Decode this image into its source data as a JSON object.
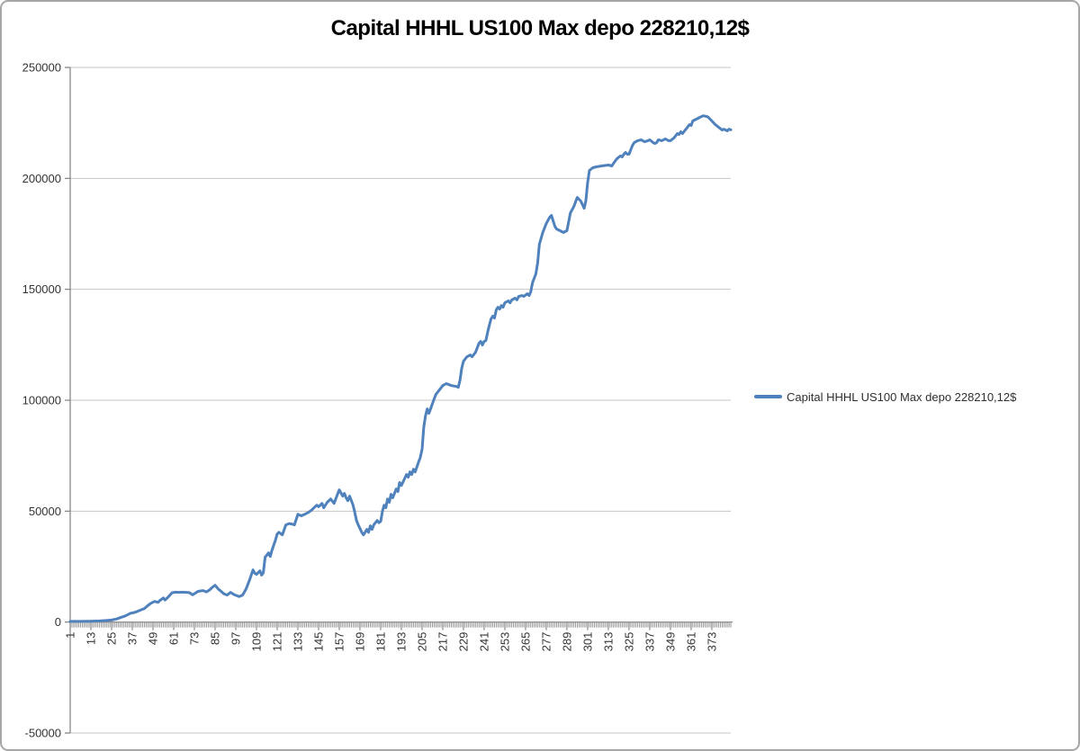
{
  "chart_title": "Capital HHHL US100 Max depo 228210,12$",
  "legend": {
    "label": "Capital HHHL US100 Max depo 228210,12$",
    "position": "right"
  },
  "colors": {
    "series_line": "#4f81bd",
    "gridline": "#c6c6c6",
    "axis_line": "#808080",
    "tick": "#8c8c8c",
    "label_text": "#333333",
    "title_text": "#000000",
    "frame_border": "#a6a6a6",
    "background": "#ffffff"
  },
  "chart_data": {
    "type": "line",
    "title": "Capital HHHL US100 Max depo 228210,12$",
    "xlabel": "",
    "ylabel": "",
    "x_range": [
      1,
      384
    ],
    "ylim": [
      -50000,
      250000
    ],
    "y_ticks": [
      250000,
      200000,
      150000,
      100000,
      50000,
      0,
      -50000
    ],
    "x_tick_labels": [
      1,
      13,
      25,
      37,
      49,
      61,
      73,
      85,
      97,
      109,
      121,
      133,
      145,
      157,
      169,
      181,
      193,
      205,
      217,
      229,
      241,
      253,
      265,
      277,
      289,
      301,
      313,
      325,
      337,
      349,
      361,
      373
    ],
    "grid": "horizontal",
    "legend_position": "right",
    "series": [
      {
        "name": "Capital HHHL US100 Max depo 228210,12$",
        "color": "#4f81bd",
        "points": [
          [
            1,
            300
          ],
          [
            6,
            300
          ],
          [
            12,
            400
          ],
          [
            18,
            500
          ],
          [
            22,
            700
          ],
          [
            25,
            900
          ],
          [
            28,
            1400
          ],
          [
            30,
            2000
          ],
          [
            33,
            2800
          ],
          [
            36,
            4000
          ],
          [
            38,
            4300
          ],
          [
            40,
            4800
          ],
          [
            42,
            5500
          ],
          [
            44,
            6100
          ],
          [
            47,
            8100
          ],
          [
            49,
            9000
          ],
          [
            50,
            9300
          ],
          [
            52,
            8900
          ],
          [
            53,
            9800
          ],
          [
            54,
            10300
          ],
          [
            55,
            10900
          ],
          [
            56,
            9900
          ],
          [
            58,
            11400
          ],
          [
            60,
            13200
          ],
          [
            62,
            13500
          ],
          [
            64,
            13400
          ],
          [
            66,
            13500
          ],
          [
            68,
            13400
          ],
          [
            70,
            13300
          ],
          [
            72,
            12300
          ],
          [
            74,
            13300
          ],
          [
            75,
            13800
          ],
          [
            77,
            14100
          ],
          [
            78,
            14200
          ],
          [
            80,
            13600
          ],
          [
            82,
            14600
          ],
          [
            83,
            15400
          ],
          [
            85,
            16600
          ],
          [
            87,
            14800
          ],
          [
            88,
            14200
          ],
          [
            90,
            12800
          ],
          [
            92,
            12200
          ],
          [
            94,
            13400
          ],
          [
            96,
            12400
          ],
          [
            99,
            11500
          ],
          [
            101,
            12200
          ],
          [
            103,
            15000
          ],
          [
            105,
            19000
          ],
          [
            107,
            23500
          ],
          [
            108,
            22000
          ],
          [
            109,
            21500
          ],
          [
            111,
            23100
          ],
          [
            112,
            21200
          ],
          [
            113,
            22300
          ],
          [
            114,
            29200
          ],
          [
            116,
            31200
          ],
          [
            117,
            29600
          ],
          [
            118,
            32400
          ],
          [
            120,
            37000
          ],
          [
            121,
            39700
          ],
          [
            122,
            40500
          ],
          [
            124,
            39300
          ],
          [
            126,
            43800
          ],
          [
            128,
            44400
          ],
          [
            130,
            44100
          ],
          [
            131,
            43800
          ],
          [
            133,
            48600
          ],
          [
            135,
            47900
          ],
          [
            137,
            48600
          ],
          [
            139,
            49400
          ],
          [
            141,
            50500
          ],
          [
            143,
            52000
          ],
          [
            144,
            52700
          ],
          [
            145,
            52000
          ],
          [
            147,
            53500
          ],
          [
            148,
            51500
          ],
          [
            150,
            54000
          ],
          [
            152,
            55500
          ],
          [
            154,
            53500
          ],
          [
            156,
            57600
          ],
          [
            157,
            59600
          ],
          [
            159,
            56800
          ],
          [
            160,
            58000
          ],
          [
            161,
            56000
          ],
          [
            162,
            54700
          ],
          [
            163,
            56800
          ],
          [
            165,
            52700
          ],
          [
            166,
            49500
          ],
          [
            167,
            45800
          ],
          [
            168,
            43800
          ],
          [
            169,
            42200
          ],
          [
            170,
            40500
          ],
          [
            171,
            39300
          ],
          [
            172,
            40500
          ],
          [
            173,
            41800
          ],
          [
            174,
            40500
          ],
          [
            175,
            43400
          ],
          [
            176,
            41800
          ],
          [
            177,
            43800
          ],
          [
            179,
            45800
          ],
          [
            180,
            44800
          ],
          [
            181,
            45400
          ],
          [
            182,
            49900
          ],
          [
            183,
            52700
          ],
          [
            184,
            51500
          ],
          [
            185,
            55500
          ],
          [
            186,
            54000
          ],
          [
            187,
            57600
          ],
          [
            188,
            56000
          ],
          [
            190,
            60000
          ],
          [
            191,
            58800
          ],
          [
            192,
            62900
          ],
          [
            193,
            61600
          ],
          [
            195,
            64900
          ],
          [
            196,
            66500
          ],
          [
            197,
            65300
          ],
          [
            198,
            67700
          ],
          [
            199,
            66500
          ],
          [
            200,
            68900
          ],
          [
            201,
            67700
          ],
          [
            203,
            72200
          ],
          [
            204,
            74200
          ],
          [
            205,
            78000
          ],
          [
            206,
            88000
          ],
          [
            207,
            93000
          ],
          [
            208,
            96100
          ],
          [
            209,
            94100
          ],
          [
            211,
            98500
          ],
          [
            212,
            100600
          ],
          [
            213,
            102600
          ],
          [
            215,
            104600
          ],
          [
            217,
            106600
          ],
          [
            219,
            107500
          ],
          [
            222,
            106600
          ],
          [
            225,
            106200
          ],
          [
            226,
            105800
          ],
          [
            227,
            109000
          ],
          [
            228,
            114400
          ],
          [
            229,
            117600
          ],
          [
            231,
            119600
          ],
          [
            233,
            120400
          ],
          [
            234,
            119600
          ],
          [
            236,
            121600
          ],
          [
            238,
            125700
          ],
          [
            239,
            126500
          ],
          [
            240,
            124900
          ],
          [
            241,
            126500
          ],
          [
            242,
            126900
          ],
          [
            243,
            130600
          ],
          [
            244,
            133800
          ],
          [
            245,
            136700
          ],
          [
            246,
            137900
          ],
          [
            247,
            137000
          ],
          [
            248,
            140700
          ],
          [
            249,
            141900
          ],
          [
            250,
            141100
          ],
          [
            251,
            142700
          ],
          [
            252,
            141900
          ],
          [
            253,
            143900
          ],
          [
            255,
            144800
          ],
          [
            256,
            143900
          ],
          [
            257,
            145200
          ],
          [
            259,
            146000
          ],
          [
            260,
            145200
          ],
          [
            261,
            146800
          ],
          [
            263,
            147200
          ],
          [
            264,
            146800
          ],
          [
            266,
            148000
          ],
          [
            267,
            147200
          ],
          [
            268,
            148800
          ],
          [
            269,
            152900
          ],
          [
            271,
            156900
          ],
          [
            272,
            162000
          ],
          [
            273,
            170300
          ],
          [
            275,
            175600
          ],
          [
            277,
            179600
          ],
          [
            279,
            182500
          ],
          [
            280,
            183300
          ],
          [
            282,
            178400
          ],
          [
            283,
            177200
          ],
          [
            285,
            176400
          ],
          [
            287,
            175600
          ],
          [
            289,
            176400
          ],
          [
            291,
            184500
          ],
          [
            293,
            187300
          ],
          [
            295,
            191400
          ],
          [
            297,
            189800
          ],
          [
            299,
            186500
          ],
          [
            300,
            190000
          ],
          [
            301,
            198000
          ],
          [
            302,
            203600
          ],
          [
            304,
            204800
          ],
          [
            306,
            205200
          ],
          [
            309,
            205600
          ],
          [
            313,
            206000
          ],
          [
            315,
            205600
          ],
          [
            316,
            206800
          ],
          [
            318,
            208900
          ],
          [
            320,
            210100
          ],
          [
            321,
            209700
          ],
          [
            322,
            210900
          ],
          [
            323,
            211700
          ],
          [
            324,
            210900
          ],
          [
            325,
            210900
          ],
          [
            327,
            214900
          ],
          [
            328,
            216100
          ],
          [
            330,
            217000
          ],
          [
            332,
            217400
          ],
          [
            334,
            216500
          ],
          [
            336,
            217000
          ],
          [
            337,
            217400
          ],
          [
            339,
            216100
          ],
          [
            340,
            215700
          ],
          [
            341,
            216100
          ],
          [
            342,
            217400
          ],
          [
            344,
            217000
          ],
          [
            346,
            217800
          ],
          [
            348,
            217000
          ],
          [
            349,
            217000
          ],
          [
            351,
            218200
          ],
          [
            353,
            220200
          ],
          [
            354,
            219800
          ],
          [
            355,
            221000
          ],
          [
            356,
            220200
          ],
          [
            358,
            222200
          ],
          [
            360,
            224200
          ],
          [
            361,
            223800
          ],
          [
            362,
            225900
          ],
          [
            364,
            226700
          ],
          [
            366,
            227500
          ],
          [
            368,
            228210
          ],
          [
            370,
            227900
          ],
          [
            371,
            227500
          ],
          [
            373,
            225900
          ],
          [
            375,
            224200
          ],
          [
            377,
            223000
          ],
          [
            379,
            221800
          ],
          [
            380,
            222200
          ],
          [
            382,
            221400
          ],
          [
            383,
            222200
          ],
          [
            384,
            221900
          ]
        ]
      }
    ]
  }
}
